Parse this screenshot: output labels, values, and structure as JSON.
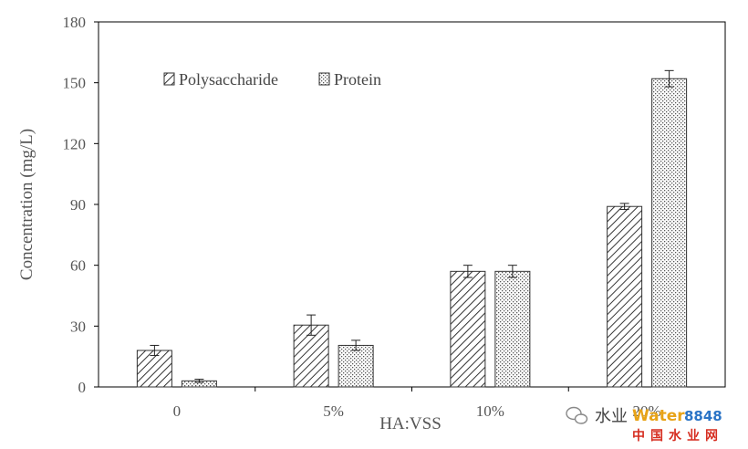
{
  "chart_data": {
    "type": "bar",
    "title": "",
    "xlabel": "HA:VSS",
    "ylabel": "Concentration (mg/L)",
    "categories": [
      "0",
      "5%",
      "10%",
      "20%"
    ],
    "ylim": [
      0,
      180
    ],
    "yticks": [
      "0",
      "30",
      "60",
      "90",
      "120",
      "150",
      "180"
    ],
    "legend_position": "top-left",
    "grid": false,
    "series": [
      {
        "name": "Polysaccharide",
        "pattern": "diagonal-hatch",
        "values": [
          18,
          30.5,
          57,
          89
        ],
        "errors": [
          2.5,
          5,
          3,
          1.5
        ]
      },
      {
        "name": "Protein",
        "pattern": "dotted",
        "values": [
          3,
          20.5,
          57,
          152
        ],
        "errors": [
          0.8,
          2.5,
          3,
          4
        ]
      }
    ]
  },
  "watermark": {
    "left_text": "水业",
    "brand_latin": "Water",
    "brand_number": "8848",
    "brand_chinese": "中国水业网",
    "colors": {
      "brand_latin": "#e8a317",
      "brand_number": "#2b74c6",
      "brand_chinese": "#d62d20"
    }
  }
}
